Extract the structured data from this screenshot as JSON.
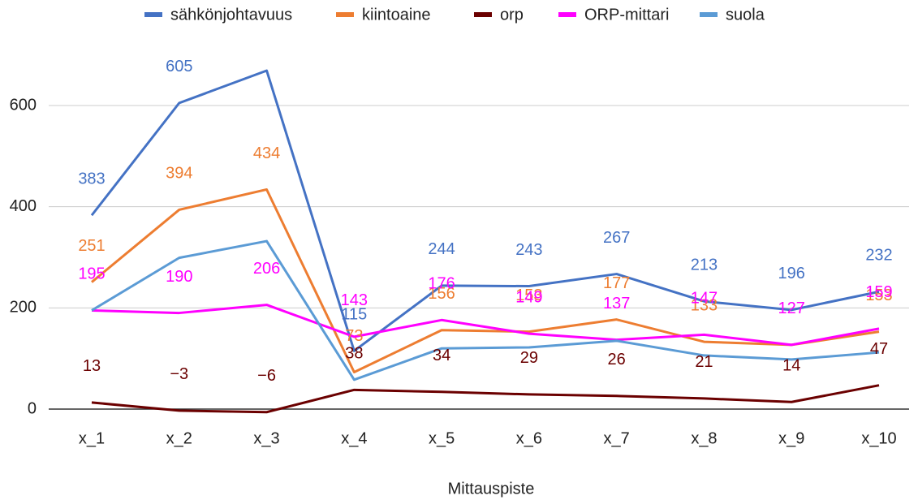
{
  "chart_data": {
    "type": "line",
    "x_label": "Mittauspiste",
    "categories": [
      "x_1",
      "x_2",
      "x_3",
      "x_4",
      "x_5",
      "x_6",
      "x_7",
      "x_8",
      "x_9",
      "x_10"
    ],
    "series": [
      {
        "name": "sähkönjohtavuus",
        "color": "#4472c4",
        "data_labels": true,
        "values": [
          383,
          605,
          669,
          115,
          244,
          243,
          267,
          213,
          196,
          232
        ],
        "value_labels": [
          "383",
          "605",
          null,
          "115",
          "244",
          "243",
          "267",
          "213",
          "196",
          "232"
        ]
      },
      {
        "name": "kiintoaine",
        "color": "#ed7d31",
        "data_labels": true,
        "values": [
          251,
          394,
          434,
          73,
          156,
          153,
          177,
          133,
          127,
          153
        ],
        "value_labels": [
          "251",
          "394",
          "434",
          "73",
          "156",
          "153",
          "177",
          "133",
          null,
          "153"
        ]
      },
      {
        "name": "orp",
        "color": "#6b0000",
        "data_labels": true,
        "values": [
          13,
          -3,
          -6,
          38,
          34,
          29,
          26,
          21,
          14,
          47
        ],
        "value_labels": [
          "13",
          "−3",
          "−6",
          "38",
          "34",
          "29",
          "26",
          "21",
          "14",
          "47"
        ]
      },
      {
        "name": "ORP-mittari",
        "color": "#ff00ff",
        "data_labels": true,
        "values": [
          195,
          190,
          206,
          143,
          176,
          149,
          137,
          147,
          127,
          159
        ]
      },
      {
        "name": "suola",
        "color": "#5b9bd5",
        "data_labels": false,
        "values": [
          195,
          299,
          332,
          58,
          120,
          122,
          135,
          106,
          98,
          112
        ]
      }
    ],
    "ylim": [
      0,
      700
    ],
    "yticks": [
      0,
      200,
      400,
      600
    ],
    "grid": true,
    "legend": "top"
  }
}
